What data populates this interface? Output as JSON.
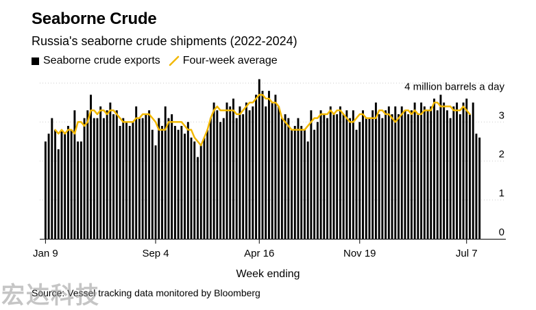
{
  "header": {
    "title": "Seaborne Crude",
    "subtitle": "Russia's seaborne crude shipments (2022-2024)"
  },
  "legend": {
    "bars_label": "Seaborne crude exports",
    "line_label": "Four-week average"
  },
  "footer": {
    "source": "Source: Vessel tracking data monitored by Bloomberg",
    "watermark": "宏达科技"
  },
  "colors": {
    "bars": "#000000",
    "line": "#f2b800",
    "grid": "#cccccc"
  },
  "chart_data": {
    "type": "bar",
    "title": "Seaborne Crude",
    "subtitle": "Russia's seaborne crude shipments (2022-2024)",
    "xlabel": "Week ending",
    "ylabel": "4 million barrels a day",
    "ylim": [
      0,
      4.2
    ],
    "y_ticks": [
      {
        "value": 0,
        "label": "0"
      },
      {
        "value": 1,
        "label": "1"
      },
      {
        "value": 2,
        "label": "2"
      },
      {
        "value": 3,
        "label": "3"
      },
      {
        "value": 4,
        "label": "4 million barrels a day"
      }
    ],
    "x_ticks": [
      {
        "index": 0,
        "label": "Jan 9"
      },
      {
        "index": 34,
        "label": "Sep 4"
      },
      {
        "index": 66,
        "label": "Apr 16"
      },
      {
        "index": 97,
        "label": "Nov 19"
      },
      {
        "index": 130,
        "label": "Jul 7"
      }
    ],
    "grid": "horizontal",
    "legend_position": "top-left",
    "series": [
      {
        "name": "Seaborne crude exports",
        "type": "bar",
        "values": [
          2.5,
          2.7,
          3.1,
          2.8,
          2.3,
          2.8,
          2.7,
          2.9,
          2.8,
          3.3,
          2.5,
          2.5,
          3.1,
          3.3,
          3.7,
          3.1,
          3.1,
          3.4,
          3.1,
          3.3,
          3.5,
          3.2,
          3.3,
          2.9,
          3.1,
          3.0,
          2.9,
          3.0,
          3.4,
          3.1,
          3.1,
          3.2,
          3.3,
          2.8,
          2.4,
          3.1,
          2.9,
          3.4,
          3.1,
          3.2,
          2.9,
          2.8,
          2.9,
          2.7,
          3.0,
          2.6,
          2.5,
          2.1,
          2.4,
          2.6,
          2.8,
          3.1,
          3.5,
          3.3,
          3.0,
          3.1,
          3.5,
          3.4,
          3.6,
          3.1,
          3.4,
          3.2,
          3.5,
          3.3,
          3.4,
          3.7,
          4.1,
          3.8,
          3.4,
          3.8,
          3.5,
          3.7,
          3.4,
          3.1,
          3.2,
          3.1,
          2.8,
          2.9,
          3.1,
          2.9,
          2.8,
          2.5,
          3.3,
          2.8,
          3.0,
          3.3,
          3.2,
          3.1,
          3.4,
          3.2,
          3.2,
          3.4,
          3.2,
          3.3,
          3.1,
          3.3,
          2.8,
          3.0,
          3.3,
          3.1,
          3.1,
          3.3,
          3.5,
          3.2,
          3.1,
          3.3,
          3.4,
          3.2,
          3.4,
          3.2,
          3.4,
          3.3,
          3.2,
          3.3,
          3.5,
          3.2,
          3.5,
          3.4,
          3.3,
          3.4,
          3.6,
          3.3,
          3.7,
          3.5,
          3.3,
          3.1,
          3.4,
          3.5,
          3.2,
          3.5,
          3.6,
          3.2,
          3.5,
          2.7,
          2.6
        ]
      },
      {
        "name": "Four-week average",
        "type": "line",
        "start_index": 3,
        "values": [
          2.8,
          2.7,
          2.8,
          2.7,
          2.8,
          2.8,
          2.7,
          3.0,
          3.0,
          2.9,
          3.0,
          3.3,
          3.3,
          3.2,
          3.3,
          3.3,
          3.2,
          3.3,
          3.3,
          3.2,
          3.1,
          3.0,
          3.0,
          3.0,
          3.0,
          3.1,
          3.1,
          3.2,
          3.2,
          3.2,
          3.1,
          3.0,
          2.8,
          2.8,
          2.8,
          3.0,
          3.0,
          3.0,
          3.0,
          3.0,
          2.9,
          2.8,
          2.8,
          2.6,
          2.5,
          2.4,
          2.6,
          2.8,
          3.1,
          3.3,
          3.4,
          3.3,
          3.3,
          3.3,
          3.3,
          3.3,
          3.2,
          3.2,
          3.3,
          3.4,
          3.5,
          3.5,
          3.6,
          3.7,
          3.7,
          3.6,
          3.6,
          3.5,
          3.5,
          3.4,
          3.1,
          3.0,
          2.9,
          2.8,
          2.8,
          2.8,
          2.8,
          2.8,
          2.9,
          3.0,
          3.1,
          3.1,
          3.2,
          3.2,
          3.2,
          3.3,
          3.2,
          3.3,
          3.3,
          3.2,
          3.1,
          3.0,
          3.0,
          3.1,
          3.2,
          3.2,
          3.1,
          3.1,
          3.1,
          3.1,
          3.3,
          3.3,
          3.2,
          3.2,
          3.1,
          3.0,
          3.1,
          3.2,
          3.3,
          3.3,
          3.2,
          3.3,
          3.2,
          3.2,
          3.3,
          3.3,
          3.3,
          3.5,
          3.5,
          3.4,
          3.4,
          3.4,
          3.4,
          3.3,
          3.3,
          3.3,
          3.4,
          3.3,
          3.2
        ]
      }
    ]
  }
}
